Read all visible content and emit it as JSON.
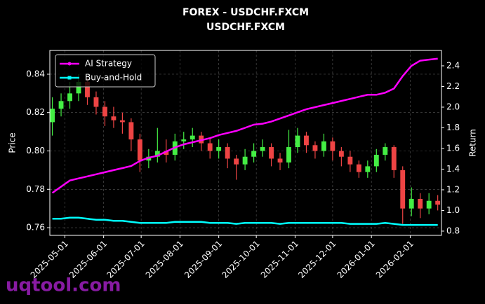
{
  "chart_data": {
    "type": "candlestick",
    "title": "FOREX - USDCHF.FXCM",
    "subtitle": "USDCHF.FXCM",
    "y_label": "Price",
    "y2_label": "Return",
    "watermark": "uqtool.com",
    "x": [
      "2025-04-21",
      "2025-04-28",
      "2025-05-05",
      "2025-05-12",
      "2025-05-19",
      "2025-05-26",
      "2025-06-02",
      "2025-06-09",
      "2025-06-16",
      "2025-06-23",
      "2025-06-30",
      "2025-07-07",
      "2025-07-14",
      "2025-07-21",
      "2025-07-28",
      "2025-08-04",
      "2025-08-11",
      "2025-08-18",
      "2025-08-25",
      "2025-09-01",
      "2025-09-08",
      "2025-09-15",
      "2025-09-22",
      "2025-09-29",
      "2025-10-06",
      "2025-10-13",
      "2025-10-20",
      "2025-10-27",
      "2025-11-03",
      "2025-11-10",
      "2025-11-17",
      "2025-11-24",
      "2025-12-01",
      "2025-12-08",
      "2025-12-15",
      "2025-12-22",
      "2025-12-29",
      "2026-01-05",
      "2026-01-12",
      "2026-01-19",
      "2026-01-26",
      "2026-02-02",
      "2026-02-09",
      "2026-02-16",
      "2026-02-23"
    ],
    "open": [
      0.815,
      0.822,
      0.826,
      0.83,
      0.836,
      0.828,
      0.823,
      0.818,
      0.816,
      0.815,
      0.806,
      0.795,
      0.797,
      0.8,
      0.798,
      0.805,
      0.806,
      0.808,
      0.804,
      0.8,
      0.802,
      0.796,
      0.793,
      0.797,
      0.8,
      0.802,
      0.796,
      0.794,
      0.802,
      0.808,
      0.803,
      0.8,
      0.805,
      0.8,
      0.797,
      0.793,
      0.789,
      0.792,
      0.798,
      0.802,
      0.79,
      0.77,
      0.775,
      0.77,
      0.774
    ],
    "high": [
      0.828,
      0.83,
      0.836,
      0.84,
      0.838,
      0.831,
      0.826,
      0.823,
      0.82,
      0.817,
      0.809,
      0.801,
      0.812,
      0.806,
      0.809,
      0.81,
      0.812,
      0.81,
      0.807,
      0.806,
      0.804,
      0.798,
      0.801,
      0.804,
      0.806,
      0.804,
      0.799,
      0.811,
      0.812,
      0.81,
      0.805,
      0.809,
      0.807,
      0.802,
      0.8,
      0.795,
      0.795,
      0.801,
      0.804,
      0.803,
      0.792,
      0.781,
      0.778,
      0.778,
      0.777
    ],
    "low": [
      0.808,
      0.818,
      0.822,
      0.826,
      0.824,
      0.819,
      0.813,
      0.812,
      0.809,
      0.8,
      0.789,
      0.791,
      0.794,
      0.794,
      0.795,
      0.801,
      0.802,
      0.8,
      0.796,
      0.796,
      0.791,
      0.785,
      0.79,
      0.794,
      0.797,
      0.792,
      0.79,
      0.791,
      0.799,
      0.799,
      0.796,
      0.797,
      0.795,
      0.792,
      0.789,
      0.786,
      0.786,
      0.789,
      0.795,
      0.786,
      0.762,
      0.766,
      0.765,
      0.767,
      0.769
    ],
    "close": [
      0.822,
      0.826,
      0.83,
      0.836,
      0.828,
      0.823,
      0.818,
      0.816,
      0.815,
      0.806,
      0.795,
      0.797,
      0.8,
      0.798,
      0.805,
      0.806,
      0.808,
      0.804,
      0.8,
      0.802,
      0.796,
      0.793,
      0.797,
      0.8,
      0.802,
      0.796,
      0.794,
      0.802,
      0.808,
      0.803,
      0.8,
      0.805,
      0.8,
      0.797,
      0.793,
      0.789,
      0.792,
      0.798,
      0.802,
      0.79,
      0.77,
      0.775,
      0.77,
      0.774,
      0.772
    ],
    "up_color": "#44ee44",
    "down_color": "#ee4444",
    "series": [
      {
        "name": "AI Strategy",
        "color": "#ff00ff",
        "axis": "y2",
        "values": [
          1.17,
          1.23,
          1.29,
          1.31,
          1.33,
          1.35,
          1.37,
          1.39,
          1.41,
          1.43,
          1.48,
          1.51,
          1.53,
          1.57,
          1.61,
          1.64,
          1.66,
          1.68,
          1.7,
          1.73,
          1.75,
          1.77,
          1.8,
          1.83,
          1.84,
          1.86,
          1.89,
          1.92,
          1.95,
          1.98,
          2.0,
          2.02,
          2.04,
          2.06,
          2.08,
          2.1,
          2.12,
          2.12,
          2.14,
          2.18,
          2.3,
          2.4,
          2.45,
          2.46,
          2.47
        ]
      },
      {
        "name": "Buy-and-Hold",
        "color": "#00ffff",
        "axis": "y2",
        "values": [
          0.92,
          0.92,
          0.93,
          0.93,
          0.92,
          0.91,
          0.91,
          0.9,
          0.9,
          0.89,
          0.88,
          0.88,
          0.88,
          0.88,
          0.89,
          0.89,
          0.89,
          0.89,
          0.88,
          0.88,
          0.88,
          0.87,
          0.88,
          0.88,
          0.88,
          0.88,
          0.87,
          0.88,
          0.88,
          0.88,
          0.88,
          0.88,
          0.88,
          0.88,
          0.87,
          0.87,
          0.87,
          0.87,
          0.88,
          0.87,
          0.86,
          0.86,
          0.86,
          0.86,
          0.86
        ]
      }
    ],
    "xlim": [
      "2025-04-19",
      "2026-02-26"
    ],
    "xticks": [
      "2025-05-01",
      "2025-06-01",
      "2025-07-01",
      "2025-08-01",
      "2025-09-01",
      "2025-10-01",
      "2025-11-01",
      "2025-12-01",
      "2026-01-01",
      "2026-02-01"
    ],
    "ylim": [
      0.756,
      0.8524
    ],
    "yticks": [
      0.76,
      0.78,
      {
        "value": 0.8,
        "label": "0.80"
      },
      0.82,
      0.84
    ],
    "y2lim": [
      0.759,
      2.549
    ],
    "y2ticks": [
      0.8,
      {
        "value": 1.0,
        "label": "1.0"
      },
      1.2,
      1.4,
      1.6,
      1.8,
      {
        "value": 2.0,
        "label": "2.0"
      },
      2.2,
      2.4
    ],
    "grid": true,
    "legend": "upper left"
  }
}
